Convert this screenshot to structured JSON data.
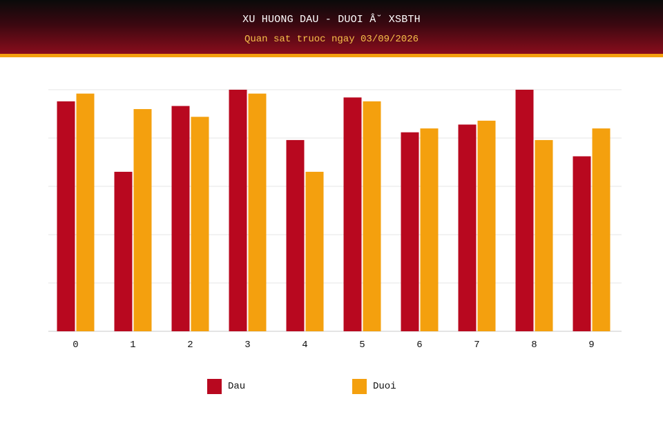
{
  "header": {
    "title": "XU HUONG DAU - DUOI Â˘ XSBTH",
    "subtitle": "Quan sat truoc ngay 03/09/2026"
  },
  "colors": {
    "dau": "#b8081f",
    "duoi": "#f4a00e",
    "grid": "#e4e4e4",
    "axis": "#c8c8c8"
  },
  "legend": {
    "items": [
      {
        "label": "Dau",
        "color": "#b8081f"
      },
      {
        "label": "Duoi",
        "color": "#f4a00e"
      }
    ]
  },
  "chart_data": {
    "type": "bar",
    "categories": [
      "0",
      "1",
      "2",
      "3",
      "4",
      "5",
      "6",
      "7",
      "8",
      "9"
    ],
    "series": [
      {
        "name": "Dau",
        "values": [
          29.7,
          20.6,
          29.1,
          31.2,
          24.7,
          30.2,
          25.7,
          26.7,
          31.2,
          22.6
        ]
      },
      {
        "name": "Duoi",
        "values": [
          30.7,
          28.7,
          27.7,
          30.7,
          20.6,
          29.7,
          26.2,
          27.2,
          24.7,
          26.2
        ]
      }
    ],
    "ylim": [
      0,
      31.2
    ],
    "grid": true,
    "legend_position": "bottom",
    "title": "",
    "xlabel": "",
    "ylabel": ""
  }
}
